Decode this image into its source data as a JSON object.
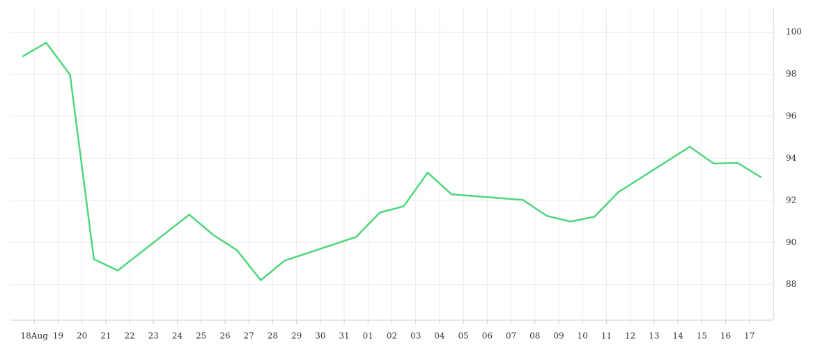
{
  "chart_data": {
    "type": "line",
    "x": [
      -0.5,
      0.5,
      1.5,
      2.5,
      3.5,
      6.5,
      7.5,
      8.5,
      9.5,
      10.5,
      13.5,
      14.5,
      15.5,
      16.5,
      17.5,
      20.5,
      21.5,
      22.5,
      23.5,
      24.5,
      27.5,
      28.5,
      29.5,
      30.5
    ],
    "series": [
      {
        "color": "#4fd67c",
        "values": [
          98.84,
          99.5,
          97.97,
          89.2,
          88.66,
          91.32,
          90.36,
          89.63,
          88.2,
          89.13,
          90.26,
          91.42,
          91.72,
          93.32,
          92.29,
          92.02,
          91.26,
          90.99,
          91.22,
          92.39,
          94.55,
          93.75,
          93.78,
          93.09
        ]
      }
    ],
    "xlim": [
      -1,
      31
    ],
    "xticks": [
      {
        "value": 0,
        "label": "18Aug"
      },
      {
        "value": 1,
        "label": "19"
      },
      {
        "value": 2,
        "label": "20"
      },
      {
        "value": 3,
        "label": "21"
      },
      {
        "value": 4,
        "label": "22"
      },
      {
        "value": 5,
        "label": "23"
      },
      {
        "value": 6,
        "label": "24"
      },
      {
        "value": 7,
        "label": "25"
      },
      {
        "value": 8,
        "label": "26"
      },
      {
        "value": 9,
        "label": "27"
      },
      {
        "value": 10,
        "label": "28"
      },
      {
        "value": 11,
        "label": "29"
      },
      {
        "value": 12,
        "label": "30"
      },
      {
        "value": 13,
        "label": "31"
      },
      {
        "value": 14,
        "label": "01"
      },
      {
        "value": 15,
        "label": "02"
      },
      {
        "value": 16,
        "label": "03"
      },
      {
        "value": 17,
        "label": "04"
      },
      {
        "value": 18,
        "label": "05"
      },
      {
        "value": 19,
        "label": "06"
      },
      {
        "value": 20,
        "label": "07"
      },
      {
        "value": 21,
        "label": "08"
      },
      {
        "value": 22,
        "label": "09"
      },
      {
        "value": 23,
        "label": "10"
      },
      {
        "value": 24,
        "label": "11"
      },
      {
        "value": 25,
        "label": "12"
      },
      {
        "value": 26,
        "label": "13"
      },
      {
        "value": 27,
        "label": "14"
      },
      {
        "value": 28,
        "label": "15"
      },
      {
        "value": 29,
        "label": "16"
      },
      {
        "value": 30,
        "label": "17"
      }
    ],
    "ylim": [
      86.3,
      101.2
    ],
    "yticks": [
      88,
      90,
      92,
      94,
      96,
      98,
      100
    ],
    "grid": true
  }
}
